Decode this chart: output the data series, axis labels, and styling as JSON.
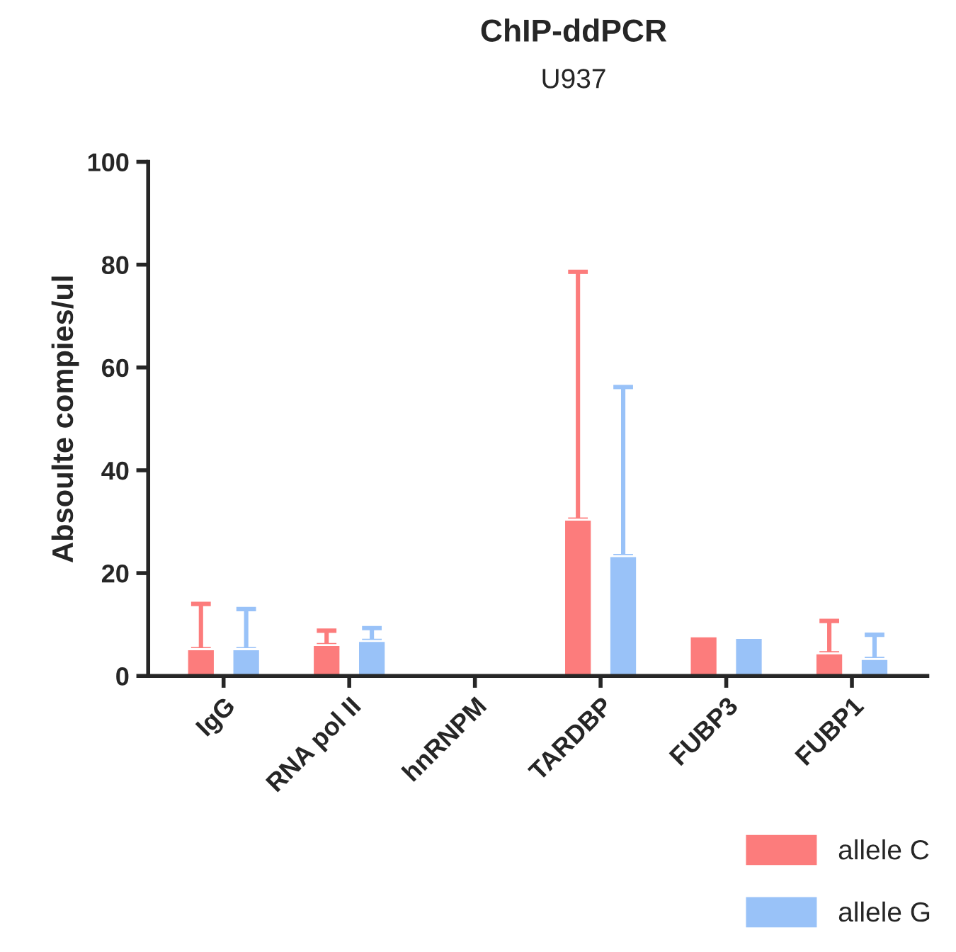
{
  "chart_data": {
    "type": "bar",
    "title": "ChIP-ddPCR",
    "subtitle": "U937",
    "ylabel": "Absoulte compies/ul",
    "categories": [
      "IgG",
      "RNA pol II",
      "hnRNPM",
      "TARDBP",
      "FUBP3",
      "FUBP1"
    ],
    "series": [
      {
        "name": "allele C",
        "color": "#fc7c7c",
        "values": [
          5.2,
          6,
          null,
          30.4,
          7.7,
          4.4
        ],
        "errors": [
          [
            5.2,
            14
          ],
          [
            6,
            8.8
          ],
          null,
          [
            30.4,
            78.6
          ],
          null,
          [
            4.4,
            10.7
          ]
        ]
      },
      {
        "name": "allele G",
        "color": "#99c2f8",
        "values": [
          5.2,
          6.8,
          null,
          23.3,
          7.4,
          3.3
        ],
        "errors": [
          [
            5.2,
            13
          ],
          [
            6.8,
            9.3
          ],
          null,
          [
            23.3,
            56.2
          ],
          null,
          [
            3.3,
            8
          ]
        ]
      }
    ],
    "ylim": [
      0,
      100
    ],
    "yticks": [
      0,
      20,
      40,
      60,
      80,
      100
    ],
    "grid": false,
    "legend": "bottom right"
  }
}
